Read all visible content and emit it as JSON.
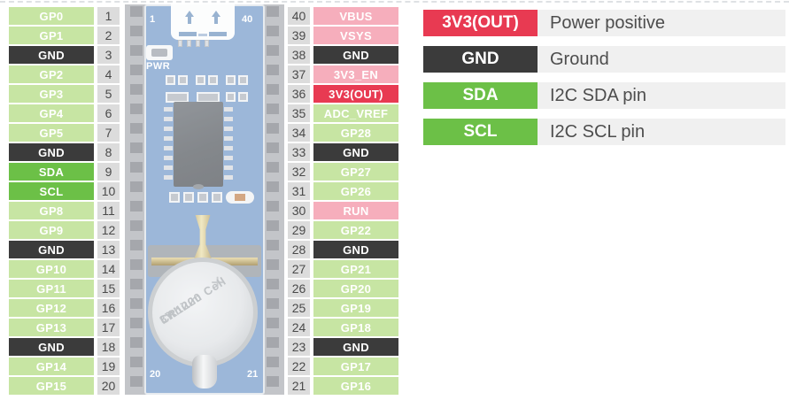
{
  "left_pins": [
    {
      "num": "1",
      "label": "GP0",
      "type": "gpio"
    },
    {
      "num": "2",
      "label": "GP1",
      "type": "gpio"
    },
    {
      "num": "3",
      "label": "GND",
      "type": "gnd"
    },
    {
      "num": "4",
      "label": "GP2",
      "type": "gpio"
    },
    {
      "num": "5",
      "label": "GP3",
      "type": "gpio"
    },
    {
      "num": "6",
      "label": "GP4",
      "type": "gpio"
    },
    {
      "num": "7",
      "label": "GP5",
      "type": "gpio"
    },
    {
      "num": "8",
      "label": "GND",
      "type": "gnd"
    },
    {
      "num": "9",
      "label": "SDA",
      "type": "i2c"
    },
    {
      "num": "10",
      "label": "SCL",
      "type": "i2c"
    },
    {
      "num": "11",
      "label": "GP8",
      "type": "gpio"
    },
    {
      "num": "12",
      "label": "GP9",
      "type": "gpio"
    },
    {
      "num": "13",
      "label": "GND",
      "type": "gnd"
    },
    {
      "num": "14",
      "label": "GP10",
      "type": "gpio"
    },
    {
      "num": "15",
      "label": "GP11",
      "type": "gpio"
    },
    {
      "num": "16",
      "label": "GP12",
      "type": "gpio"
    },
    {
      "num": "17",
      "label": "GP13",
      "type": "gpio"
    },
    {
      "num": "18",
      "label": "GND",
      "type": "gnd"
    },
    {
      "num": "19",
      "label": "GP14",
      "type": "gpio"
    },
    {
      "num": "20",
      "label": "GP15",
      "type": "gpio"
    }
  ],
  "right_pins": [
    {
      "num": "40",
      "label": "VBUS",
      "type": "power"
    },
    {
      "num": "39",
      "label": "VSYS",
      "type": "power"
    },
    {
      "num": "38",
      "label": "GND",
      "type": "gnd"
    },
    {
      "num": "37",
      "label": "3V3_EN",
      "type": "power"
    },
    {
      "num": "36",
      "label": "3V3(OUT)",
      "type": "power_out"
    },
    {
      "num": "35",
      "label": "ADC_VREF",
      "type": "gpio"
    },
    {
      "num": "34",
      "label": "GP28",
      "type": "gpio"
    },
    {
      "num": "33",
      "label": "GND",
      "type": "gnd"
    },
    {
      "num": "32",
      "label": "GP27",
      "type": "gpio"
    },
    {
      "num": "31",
      "label": "GP26",
      "type": "gpio"
    },
    {
      "num": "30",
      "label": "RUN",
      "type": "power"
    },
    {
      "num": "29",
      "label": "GP22",
      "type": "gpio"
    },
    {
      "num": "28",
      "label": "GND",
      "type": "gnd"
    },
    {
      "num": "27",
      "label": "GP21",
      "type": "gpio"
    },
    {
      "num": "26",
      "label": "GP20",
      "type": "gpio"
    },
    {
      "num": "25",
      "label": "GP19",
      "type": "gpio"
    },
    {
      "num": "24",
      "label": "GP18",
      "type": "gpio"
    },
    {
      "num": "23",
      "label": "GND",
      "type": "gnd"
    },
    {
      "num": "22",
      "label": "GP17",
      "type": "gpio"
    },
    {
      "num": "21",
      "label": "GP16",
      "type": "gpio"
    }
  ],
  "legend": {
    "rows": [
      {
        "label": "3V3(OUT)",
        "type": "power_out",
        "desc": "Power positive"
      },
      {
        "label": "GND",
        "type": "gnd",
        "desc": "Ground"
      },
      {
        "label": "SDA",
        "type": "i2c",
        "desc": "I2C SDA pin"
      },
      {
        "label": "SCL",
        "type": "i2c",
        "desc": "I2C SCL pin"
      }
    ]
  },
  "board": {
    "corner_top_left": "1",
    "corner_top_right": "40",
    "corner_bottom_left": "20",
    "corner_bottom_right": "21",
    "pwr_label": "PWR",
    "battery_line1": "Lithium Cell",
    "battery_line2": "CR1220",
    "battery_line3": "3V",
    "battery_plus": "+"
  },
  "colors": {
    "gpio": "#c7e5a3",
    "gnd": "#3b3b3b",
    "power": "#f6aebc",
    "power_out": "#e83a52",
    "i2c": "#6cc047",
    "legend_row_bg": "#f0f0f0",
    "pin_number_bg": "#dcdcdc",
    "pin_number_text": "#4a4a4a",
    "pcb_blue": "#7198c9"
  }
}
